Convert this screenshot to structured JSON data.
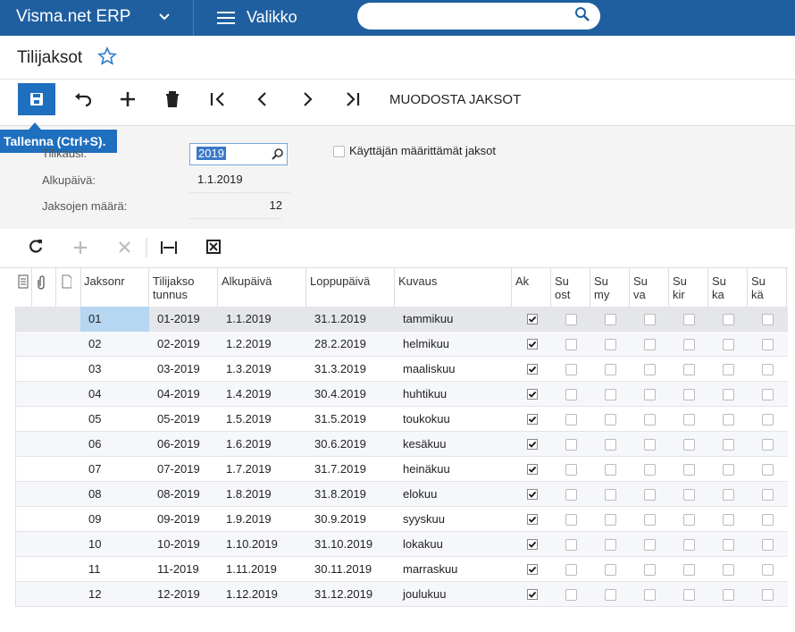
{
  "header": {
    "app_name": "Visma.net ERP",
    "menu": "Valikko"
  },
  "page": {
    "title": "Tilijaksot"
  },
  "toolbar": {
    "action": "MUODOSTA JAKSOT",
    "tooltip": "Tallenna (Ctrl+S)."
  },
  "form": {
    "fields": [
      {
        "label": "Tilikausi:",
        "value": "2019"
      },
      {
        "label": "Alkupäivä:",
        "value": "1.1.2019"
      },
      {
        "label": "Jaksojen määrä:",
        "value": "12"
      }
    ],
    "checkbox": "Käyttäjän määrittämät jaksot"
  },
  "grid": {
    "columns": [
      [
        "Jaksonr"
      ],
      [
        "Tilijakso",
        "tunnus"
      ],
      [
        "Alkupäivä"
      ],
      [
        "Loppupäivä"
      ],
      [
        "Kuvaus"
      ],
      [
        "Ak"
      ],
      [
        "Su",
        "ost"
      ],
      [
        "Su",
        "my"
      ],
      [
        "Su",
        "va"
      ],
      [
        "Su",
        "kir"
      ],
      [
        "Su",
        "ka"
      ],
      [
        "Su",
        "kä"
      ]
    ],
    "rows": [
      [
        "01",
        "01-2019",
        "1.1.2019",
        "31.1.2019",
        "tammikuu"
      ],
      [
        "02",
        "02-2019",
        "1.2.2019",
        "28.2.2019",
        "helmikuu"
      ],
      [
        "03",
        "03-2019",
        "1.3.2019",
        "31.3.2019",
        "maaliskuu"
      ],
      [
        "04",
        "04-2019",
        "1.4.2019",
        "30.4.2019",
        "huhtikuu"
      ],
      [
        "05",
        "05-2019",
        "1.5.2019",
        "31.5.2019",
        "toukokuu"
      ],
      [
        "06",
        "06-2019",
        "1.6.2019",
        "30.6.2019",
        "kesäkuu"
      ],
      [
        "07",
        "07-2019",
        "1.7.2019",
        "31.7.2019",
        "heinäkuu"
      ],
      [
        "08",
        "08-2019",
        "1.8.2019",
        "31.8.2019",
        "elokuu"
      ],
      [
        "09",
        "09-2019",
        "1.9.2019",
        "30.9.2019",
        "syyskuu"
      ],
      [
        "10",
        "10-2019",
        "1.10.2019",
        "31.10.2019",
        "lokakuu"
      ],
      [
        "11",
        "11-2019",
        "1.11.2019",
        "30.11.2019",
        "marraskuu"
      ],
      [
        "12",
        "12-2019",
        "1.12.2019",
        "31.12.2019",
        "joulukuu"
      ]
    ]
  }
}
